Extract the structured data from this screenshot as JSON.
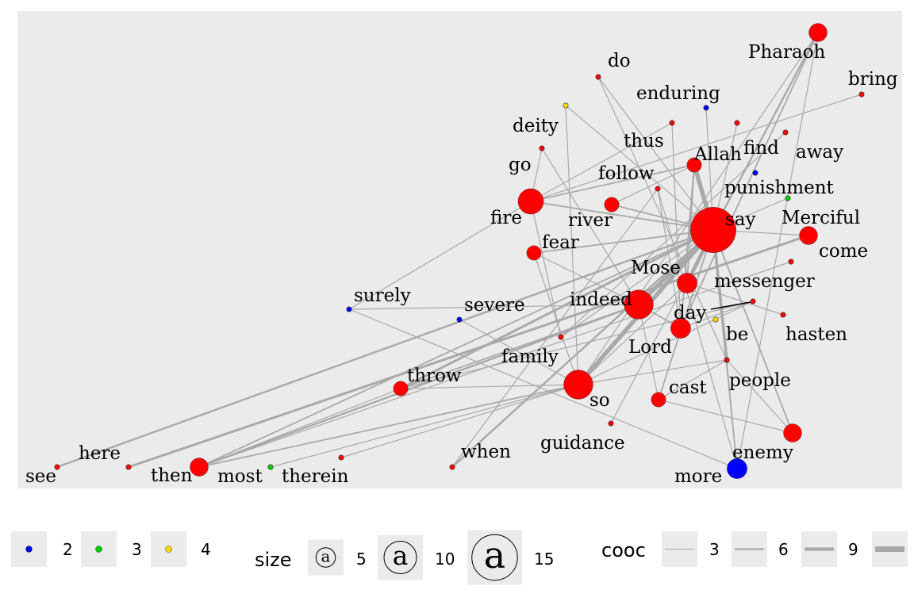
{
  "colors": {
    "panel": "#ebebeb",
    "edge": "#a9a9a9",
    "highlight_edge": "#000000",
    "node_default": "#ff0000",
    "group_2": "#0000ff",
    "group_3": "#00cd00",
    "group_4": "#ffd700"
  },
  "chart_data": {
    "type": "network",
    "nodes": [
      {
        "id": "Pharaoh",
        "label": "Pharaoh",
        "group": 1,
        "size": 10
      },
      {
        "id": "do",
        "label": "do",
        "group": 1,
        "size": 2
      },
      {
        "id": "bring",
        "label": "bring",
        "group": 1,
        "size": 2
      },
      {
        "id": "enduring",
        "label": "enduring",
        "group": 2,
        "size": 2
      },
      {
        "id": "deity",
        "label": "deity",
        "group": 4,
        "size": 2
      },
      {
        "id": "thus",
        "label": "thus",
        "group": 1,
        "size": 2
      },
      {
        "id": "find",
        "label": "find",
        "group": 1,
        "size": 2
      },
      {
        "id": "away",
        "label": "away",
        "group": 1,
        "size": 2
      },
      {
        "id": "go",
        "label": "go",
        "group": 1,
        "size": 2
      },
      {
        "id": "Allah",
        "label": "Allah",
        "group": 1,
        "size": 8
      },
      {
        "id": "follow",
        "label": "follow",
        "group": 1,
        "size": 2
      },
      {
        "id": "punishment",
        "label": "punishment",
        "group": 2,
        "size": 2
      },
      {
        "id": "punishment2",
        "label": "",
        "group": 3,
        "size": 2
      },
      {
        "id": "fire",
        "label": "fire",
        "group": 1,
        "size": 14
      },
      {
        "id": "river",
        "label": "river",
        "group": 1,
        "size": 8
      },
      {
        "id": "say",
        "label": "say",
        "group": 1,
        "size": 25
      },
      {
        "id": "Merciful",
        "label": "Merciful",
        "group": 1,
        "size": 10
      },
      {
        "id": "come",
        "label": "come",
        "group": 1,
        "size": 2
      },
      {
        "id": "fear",
        "label": "fear",
        "group": 1,
        "size": 8
      },
      {
        "id": "Mose",
        "label": "Mose",
        "group": 1,
        "size": 11
      },
      {
        "id": "messenger",
        "label": "messenger",
        "group": 1,
        "size": 2
      },
      {
        "id": "surely",
        "label": "surely",
        "group": 2,
        "size": 2
      },
      {
        "id": "severe",
        "label": "severe",
        "group": 2,
        "size": 2
      },
      {
        "id": "indeed",
        "label": "indeed",
        "group": 1,
        "size": 16
      },
      {
        "id": "day",
        "label": "day",
        "group": 1,
        "size": 11
      },
      {
        "id": "be",
        "label": "be",
        "group": 4,
        "size": 2
      },
      {
        "id": "hasten",
        "label": "hasten",
        "group": 1,
        "size": 2
      },
      {
        "id": "Lord",
        "label": "Lord",
        "group": 1,
        "size": 2
      },
      {
        "id": "family",
        "label": "family",
        "group": 1,
        "size": 2
      },
      {
        "id": "throw",
        "label": "throw",
        "group": 1,
        "size": 8
      },
      {
        "id": "so",
        "label": "so",
        "group": 1,
        "size": 16
      },
      {
        "id": "cast",
        "label": "cast",
        "group": 1,
        "size": 8
      },
      {
        "id": "people",
        "label": "people",
        "group": 1,
        "size": 2
      },
      {
        "id": "guidance",
        "label": "guidance",
        "group": 1,
        "size": 2
      },
      {
        "id": "enemy",
        "label": "enemy",
        "group": 1,
        "size": 10
      },
      {
        "id": "here",
        "label": "here",
        "group": 1,
        "size": 2
      },
      {
        "id": "see",
        "label": "see",
        "group": 1,
        "size": 2
      },
      {
        "id": "then",
        "label": "then",
        "group": 1,
        "size": 10
      },
      {
        "id": "most",
        "label": "most",
        "group": 3,
        "size": 2
      },
      {
        "id": "therein",
        "label": "therein",
        "group": 1,
        "size": 2
      },
      {
        "id": "when",
        "label": "when",
        "group": 1,
        "size": 2
      },
      {
        "id": "more",
        "label": "more",
        "group": 2,
        "size": 11
      }
    ],
    "edges": [
      {
        "from": "say",
        "to": "Allah",
        "cooc": 9
      },
      {
        "from": "say",
        "to": "indeed",
        "cooc": 9
      },
      {
        "from": "say",
        "to": "so",
        "cooc": 9
      },
      {
        "from": "say",
        "to": "Mose",
        "cooc": 8
      },
      {
        "from": "say",
        "to": "Lord",
        "cooc": 6
      },
      {
        "from": "say",
        "to": "Pharaoh",
        "cooc": 4
      },
      {
        "from": "say",
        "to": "throw",
        "cooc": 5
      },
      {
        "from": "say",
        "to": "see",
        "cooc": 4
      },
      {
        "from": "say",
        "to": "fire",
        "cooc": 3
      },
      {
        "from": "say",
        "to": "river",
        "cooc": 3
      },
      {
        "from": "say",
        "to": "fear",
        "cooc": 3
      },
      {
        "from": "say",
        "to": "when",
        "cooc": 4
      },
      {
        "from": "say",
        "to": "then",
        "cooc": 3
      },
      {
        "from": "say",
        "to": "enemy",
        "cooc": 3
      },
      {
        "from": "say",
        "to": "more",
        "cooc": 3
      },
      {
        "from": "say",
        "to": "cast",
        "cooc": 3
      },
      {
        "from": "say",
        "to": "enduring",
        "cooc": 2
      },
      {
        "from": "say",
        "to": "do",
        "cooc": 2
      },
      {
        "from": "say",
        "to": "deity",
        "cooc": 2
      },
      {
        "from": "say",
        "to": "find",
        "cooc": 2
      },
      {
        "from": "say",
        "to": "punishment2",
        "cooc": 2
      },
      {
        "from": "say",
        "to": "family",
        "cooc": 2
      },
      {
        "from": "say",
        "to": "guidance",
        "cooc": 2
      },
      {
        "from": "say",
        "to": "Merciful",
        "cooc": 2
      },
      {
        "from": "Allah",
        "to": "fire",
        "cooc": 3
      },
      {
        "from": "Allah",
        "to": "river",
        "cooc": 2
      },
      {
        "from": "Allah",
        "to": "Mose",
        "cooc": 3
      },
      {
        "from": "Allah",
        "to": "day",
        "cooc": 3
      },
      {
        "from": "Pharaoh",
        "to": "day",
        "cooc": 3
      },
      {
        "from": "Pharaoh",
        "to": "more",
        "cooc": 2
      },
      {
        "from": "Pharaoh",
        "to": "so",
        "cooc": 2
      },
      {
        "from": "indeed",
        "to": "then",
        "cooc": 4
      },
      {
        "from": "indeed",
        "to": "throw",
        "cooc": 3
      },
      {
        "from": "indeed",
        "to": "day",
        "cooc": 3
      },
      {
        "from": "indeed",
        "to": "surely",
        "cooc": 2
      },
      {
        "from": "indeed",
        "to": "cast",
        "cooc": 2
      },
      {
        "from": "indeed",
        "to": "fear",
        "cooc": 2
      },
      {
        "from": "so",
        "to": "throw",
        "cooc": 2
      },
      {
        "from": "so",
        "to": "then",
        "cooc": 3
      },
      {
        "from": "so",
        "to": "Lord",
        "cooc": 2
      },
      {
        "from": "so",
        "to": "severe",
        "cooc": 2
      },
      {
        "from": "so",
        "to": "fear",
        "cooc": 2
      },
      {
        "from": "so",
        "to": "Mose",
        "cooc": 2
      },
      {
        "from": "so",
        "to": "therein",
        "cooc": 2
      },
      {
        "from": "so",
        "to": "messenger",
        "cooc": 2
      },
      {
        "from": "so",
        "to": "most",
        "cooc": 2
      },
      {
        "from": "go",
        "to": "fire",
        "cooc": 2
      },
      {
        "from": "go",
        "to": "indeed",
        "cooc": 2
      },
      {
        "from": "fire",
        "to": "surely",
        "cooc": 2
      },
      {
        "from": "fire",
        "to": "thus",
        "cooc": 2
      },
      {
        "from": "fire",
        "to": "family",
        "cooc": 2
      },
      {
        "from": "fire",
        "to": "bring",
        "cooc": 2
      },
      {
        "from": "deity",
        "to": "so",
        "cooc": 2
      },
      {
        "from": "do",
        "to": "Lord",
        "cooc": 2
      },
      {
        "from": "thus",
        "to": "day",
        "cooc": 2
      },
      {
        "from": "day",
        "to": "messenger",
        "cooc": 2
      },
      {
        "from": "Merciful",
        "to": "here",
        "cooc": 5
      },
      {
        "from": "Mose",
        "to": "hasten",
        "cooc": 2
      },
      {
        "from": "Lord",
        "to": "cast",
        "cooc": 2
      },
      {
        "from": "cast",
        "to": "enemy",
        "cooc": 2
      },
      {
        "from": "enemy",
        "to": "people",
        "cooc": 2
      },
      {
        "from": "more",
        "to": "people",
        "cooc": 2
      },
      {
        "from": "more",
        "to": "surely",
        "cooc": 2
      },
      {
        "from": "more",
        "to": "follow",
        "cooc": 2
      },
      {
        "from": "then",
        "to": "come",
        "cooc": 2
      },
      {
        "from": "then",
        "to": "throw",
        "cooc": 2
      },
      {
        "from": "throw",
        "to": "messenger",
        "cooc": 2
      },
      {
        "from": "family",
        "to": "away",
        "cooc": 2
      },
      {
        "from": "when",
        "to": "follow",
        "cooc": 2
      },
      {
        "from": "follow",
        "to": "day",
        "cooc": 2
      }
    ],
    "highlight_edges": [
      {
        "from": "day",
        "to": "messenger"
      }
    ],
    "legends": [
      {
        "kind": "color",
        "title": "",
        "entries": [
          {
            "label": "2",
            "color": "#0000ff"
          },
          {
            "label": "3",
            "color": "#00cd00"
          },
          {
            "label": "4",
            "color": "#ffd700"
          }
        ]
      },
      {
        "kind": "size",
        "title": "size",
        "glyph": "a",
        "entries": [
          {
            "label": "5",
            "value": 5
          },
          {
            "label": "10",
            "value": 10
          },
          {
            "label": "15",
            "value": 15
          }
        ]
      },
      {
        "kind": "width",
        "title": "cooc",
        "entries": [
          {
            "label": "3",
            "value": 3
          },
          {
            "label": "6",
            "value": 6
          },
          {
            "label": "9",
            "value": 9
          }
        ]
      }
    ]
  }
}
